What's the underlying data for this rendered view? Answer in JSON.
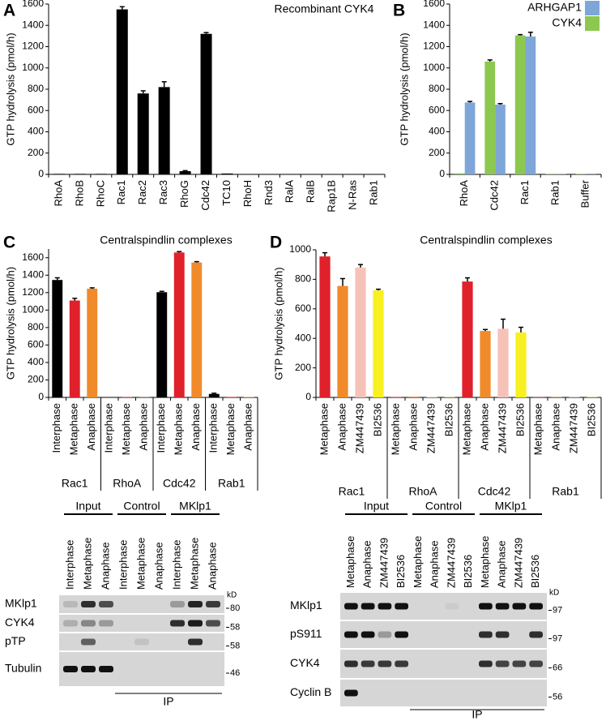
{
  "chart_data": [
    {
      "panel": "A",
      "type": "bar",
      "title": "Recombinant CYK4",
      "y_label": "GTP hydrolysis (pmol/h)",
      "categories": [
        "RhoA",
        "RhoB",
        "RhoC",
        "Rac1",
        "Rac2",
        "Rac3",
        "RhoG",
        "Cdc42",
        "TC10",
        "RhoH",
        "Rnd3",
        "RalA",
        "RalB",
        "Rap1B",
        "N-Ras",
        "Rab1"
      ],
      "values": [
        5,
        5,
        5,
        1550,
        760,
        820,
        30,
        1320,
        8,
        3,
        3,
        3,
        3,
        3,
        3,
        3
      ],
      "errors": [
        null,
        null,
        null,
        25,
        25,
        50,
        5,
        12,
        null,
        null,
        null,
        null,
        null,
        null,
        null,
        null
      ],
      "color": "#000000",
      "ylim": [
        0,
        1600
      ],
      "yticks": [
        0,
        200,
        400,
        600,
        800,
        1000,
        1200,
        1400,
        1600
      ]
    },
    {
      "panel": "B",
      "type": "bar",
      "y_label": "GTP hydrolysis (pmol/h)",
      "categories": [
        "RhoA",
        "Cdc42",
        "Rac1",
        "Rab1",
        "Buffer"
      ],
      "series": [
        {
          "name": "ARHGAP1",
          "color": "#7ea6d8",
          "values": [
            675,
            655,
            1295,
            3,
            2
          ],
          "errors": [
            10,
            10,
            40,
            null,
            null
          ]
        },
        {
          "name": "CYK4",
          "color": "#8cc850",
          "values": [
            10,
            1060,
            1305,
            3,
            3
          ],
          "errors": [
            null,
            15,
            8,
            null,
            null
          ]
        }
      ],
      "legend": "top-right",
      "ylim": [
        0,
        1600
      ],
      "yticks": [
        0,
        200,
        400,
        600,
        800,
        1000,
        1200,
        1400,
        1600
      ]
    },
    {
      "panel": "C",
      "type": "bar",
      "title": "Centralspindlin complexes",
      "y_label": "GTP hydrolysis (pmol/h)",
      "groups": [
        "Rac1",
        "RhoA",
        "Cdc42",
        "Rab1"
      ],
      "categories": [
        "Interphase",
        "Metaphase",
        "Anaphase",
        "Interphase",
        "Metaphase",
        "Anaphase",
        "Interphase",
        "Metaphase",
        "Anaphase",
        "Interphase",
        "Metaphase",
        "Anaphase"
      ],
      "values": [
        1345,
        1110,
        1245,
        3,
        5,
        3,
        1205,
        1660,
        1545,
        40,
        5,
        5
      ],
      "errors": [
        25,
        25,
        10,
        null,
        null,
        null,
        10,
        10,
        10,
        8,
        null,
        null
      ],
      "colors": [
        "#000000",
        "#e0202a",
        "#f08a2a",
        "#000000",
        "#e0202a",
        "#f08a2a",
        "#000000",
        "#e0202a",
        "#f08a2a",
        "#000000",
        "#e0202a",
        "#f08a2a"
      ],
      "ylim": [
        0,
        1700
      ],
      "yticks": [
        0,
        200,
        400,
        600,
        800,
        1000,
        1200,
        1400,
        1600
      ]
    },
    {
      "panel": "D",
      "type": "bar",
      "title": "Centralspindlin complexes",
      "y_label": "GTP hydrolysis (pmol/h)",
      "groups": [
        "Rac1",
        "RhoA",
        "Cdc42",
        "Rab1"
      ],
      "categories": [
        "Metaphase",
        "Anaphase",
        "ZM447439",
        "BI2536",
        "Metaphase",
        "Anaphase",
        "ZM447439",
        "BI2536",
        "Metaphase",
        "Anaphase",
        "ZM447439",
        "BI2536",
        "Metaphase",
        "Anaphase",
        "ZM447439",
        "BI2536"
      ],
      "values": [
        955,
        755,
        880,
        725,
        3,
        5,
        3,
        2,
        785,
        450,
        465,
        440,
        2,
        2,
        2,
        2
      ],
      "errors": [
        25,
        50,
        20,
        8,
        null,
        null,
        null,
        null,
        25,
        10,
        65,
        35,
        null,
        null,
        null,
        null
      ],
      "colors": [
        "#e0202a",
        "#f08a2a",
        "#f6c2b8",
        "#f8f020",
        "#e0202a",
        "#f08a2a",
        "#f6c2b8",
        "#f8f020",
        "#e0202a",
        "#f08a2a",
        "#f6c2b8",
        "#f8f020",
        "#e0202a",
        "#f08a2a",
        "#f6c2b8",
        "#f8f020"
      ],
      "ylim": [
        0,
        1000
      ],
      "yticks": [
        0,
        200,
        400,
        600,
        800,
        1000
      ]
    }
  ],
  "blots": [
    {
      "groups": [
        "Input",
        "Control",
        "MKlp1"
      ],
      "lanes": [
        "Interphase",
        "Metaphase",
        "Anaphase",
        "Interphase",
        "Metaphase",
        "Anaphase",
        "Interphase",
        "Metaphase",
        "Anaphase"
      ],
      "unit": "kD",
      "ip": "IP",
      "rows": [
        {
          "label": "MKlp1",
          "marker": 80
        },
        {
          "label": "CYK4",
          "marker": 58
        },
        {
          "label": "pTP",
          "marker": 58,
          "label_color": "#e0202a"
        },
        {
          "label": "Tubulin",
          "marker": 46
        }
      ]
    },
    {
      "groups": [
        "Input",
        "Control",
        "MKlp1"
      ],
      "lanes": [
        "Metaphase",
        "Anaphase",
        "ZM447439",
        "BI2536",
        "Metaphase",
        "Anaphase",
        "ZM447439",
        "BI2536",
        "Metaphase",
        "Anaphase",
        "ZM447439",
        "BI2536"
      ],
      "unit": "kD",
      "ip": "IP",
      "rows": [
        {
          "label": "MKlp1",
          "marker": 97
        },
        {
          "label": "pS911",
          "marker": 97,
          "label_color": "#e0202a"
        },
        {
          "label": "CYK4",
          "marker": 66
        },
        {
          "label": "Cyclin B",
          "marker": 56
        }
      ]
    }
  ]
}
